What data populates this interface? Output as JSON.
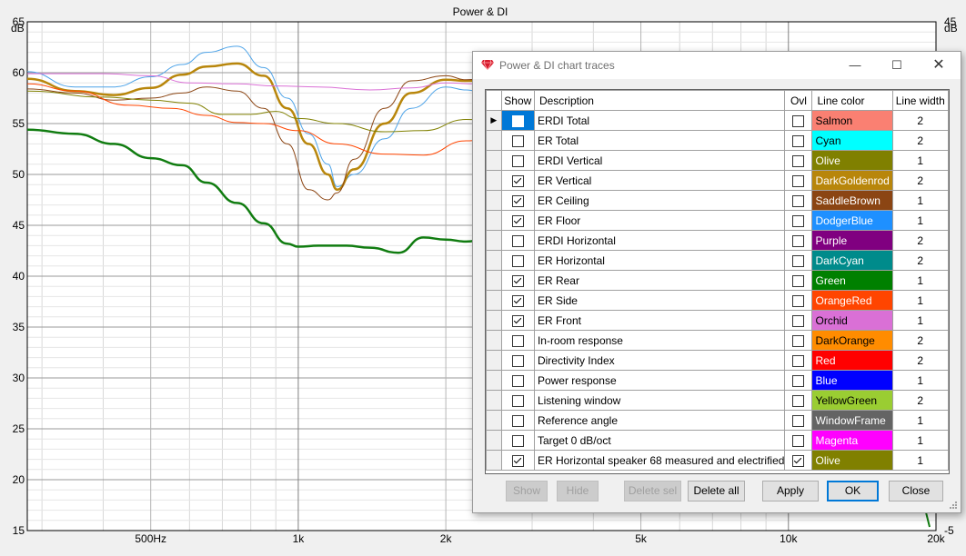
{
  "chart_data": {
    "type": "line",
    "title": "Power & DI",
    "ylabel_left": "dB",
    "ylabel_right": "dB",
    "x_scale": "log",
    "xlim": [
      280,
      20000
    ],
    "ylim": [
      15,
      65
    ],
    "ylim_right": [
      -5,
      45
    ],
    "x_ticks": [
      {
        "value": 500,
        "label": "500Hz"
      },
      {
        "value": 1000,
        "label": "1k"
      },
      {
        "value": 2000,
        "label": "2k"
      },
      {
        "value": 5000,
        "label": "5k"
      },
      {
        "value": 10000,
        "label": "10k"
      },
      {
        "value": 20000,
        "label": "20k"
      }
    ],
    "y_ticks_left": [
      "65",
      "60",
      "55",
      "50",
      "45",
      "40",
      "35",
      "30",
      "25",
      "20",
      "15"
    ],
    "y_ticks_right": [
      "45",
      "-5"
    ],
    "grid": true,
    "series": [
      {
        "color": "#4da3e8",
        "width": 1,
        "x": [
          280,
          350,
          420,
          500,
          580,
          650,
          750,
          850,
          950,
          1050,
          1150,
          1200,
          1300,
          1500,
          1700,
          2000,
          2200,
          2500,
          2700
        ],
        "y": [
          60.1,
          58.6,
          58.6,
          59.6,
          60.8,
          62.0,
          62.6,
          60.5,
          57.5,
          54.0,
          51.0,
          48.8,
          50.0,
          53.5,
          56.5,
          58.6,
          58.3,
          57.5,
          57.3
        ]
      },
      {
        "color": "#b8860b",
        "width": 2.5,
        "x": [
          280,
          350,
          420,
          500,
          580,
          650,
          750,
          850,
          950,
          1050,
          1150,
          1200,
          1300,
          1500,
          1700,
          2000,
          2200,
          2500,
          2700
        ],
        "y": [
          59.4,
          58.2,
          57.8,
          58.5,
          59.8,
          60.6,
          60.9,
          59.7,
          56.5,
          53.0,
          50.0,
          48.5,
          50.5,
          55.0,
          58.0,
          59.3,
          59.2,
          59.3,
          58.8
        ]
      },
      {
        "color": "#8b4513",
        "width": 1,
        "x": [
          280,
          350,
          420,
          500,
          580,
          650,
          750,
          850,
          950,
          1050,
          1150,
          1200,
          1300,
          1500,
          1700,
          2000,
          2200,
          2500,
          2700
        ],
        "y": [
          58.4,
          58.0,
          57.3,
          57.5,
          58.0,
          58.6,
          58.2,
          56.5,
          53.0,
          48.5,
          47.5,
          48.2,
          51.5,
          56.5,
          59.2,
          59.7,
          59.3,
          59.6,
          59.2
        ]
      },
      {
        "color": "#da70d6",
        "width": 1,
        "x": [
          280,
          400,
          500,
          600,
          750,
          900,
          1100,
          1400,
          1700,
          2000,
          2300,
          2700
        ],
        "y": [
          59.9,
          59.9,
          59.7,
          59.0,
          58.9,
          58.7,
          58.6,
          58.3,
          58.5,
          59.0,
          58.9,
          58.8
        ]
      },
      {
        "color": "#808000",
        "width": 1,
        "x": [
          280,
          400,
          500,
          600,
          700,
          800,
          900,
          1000,
          1200,
          1500,
          1800,
          2200,
          2700
        ],
        "y": [
          58.2,
          57.6,
          57.3,
          57.0,
          55.9,
          55.9,
          56.2,
          55.5,
          55.0,
          54.2,
          54.3,
          55.4,
          55.2
        ]
      },
      {
        "color": "#ff4500",
        "width": 1,
        "x": [
          280,
          350,
          450,
          550,
          650,
          750,
          850,
          1000,
          1200,
          1500,
          1800,
          2200,
          2700
        ],
        "y": [
          58.9,
          58.2,
          56.8,
          56.5,
          55.8,
          55.1,
          55.0,
          54.3,
          53.0,
          52.0,
          51.9,
          53.3,
          53.8
        ]
      },
      {
        "color": "#107c10",
        "width": 2.5,
        "x": [
          280,
          350,
          420,
          500,
          580,
          650,
          750,
          850,
          950,
          1000,
          1100,
          1250,
          1400,
          1600,
          1800,
          2000,
          2200,
          2400,
          2600,
          2700
        ],
        "y": [
          54.4,
          54.0,
          53.0,
          51.6,
          50.9,
          49.2,
          47.2,
          45.2,
          43.2,
          42.9,
          43.0,
          43.0,
          42.8,
          42.3,
          43.8,
          43.6,
          43.4,
          43.6,
          43.8,
          43.4
        ]
      }
    ]
  },
  "dialog": {
    "title": "Power & DI chart traces",
    "columns": [
      "Show",
      "Description",
      "Ovl",
      "Line color",
      "Line width"
    ],
    "rows": [
      {
        "show": false,
        "desc": "ERDI Total",
        "ovl": false,
        "color": "Salmon",
        "hex": "#fa8072",
        "text": "#000000",
        "width": "2",
        "selected": true
      },
      {
        "show": false,
        "desc": "ER Total",
        "ovl": false,
        "color": "Cyan",
        "hex": "#00ffff",
        "text": "#000000",
        "width": "2"
      },
      {
        "show": false,
        "desc": "ERDI Vertical",
        "ovl": false,
        "color": "Olive",
        "hex": "#808000",
        "text": "#ffffff",
        "width": "1"
      },
      {
        "show": true,
        "desc": "ER Vertical",
        "ovl": false,
        "color": "DarkGoldenrod",
        "hex": "#b8860b",
        "text": "#ffffff",
        "width": "2"
      },
      {
        "show": true,
        "desc": "ER Ceiling",
        "ovl": false,
        "color": "SaddleBrown",
        "hex": "#8b4513",
        "text": "#ffffff",
        "width": "1"
      },
      {
        "show": true,
        "desc": "ER Floor",
        "ovl": false,
        "color": "DodgerBlue",
        "hex": "#1e90ff",
        "text": "#ffffff",
        "width": "1"
      },
      {
        "show": false,
        "desc": "ERDI Horizontal",
        "ovl": false,
        "color": "Purple",
        "hex": "#800080",
        "text": "#ffffff",
        "width": "2"
      },
      {
        "show": false,
        "desc": "ER Horizontal",
        "ovl": false,
        "color": "DarkCyan",
        "hex": "#008b8b",
        "text": "#ffffff",
        "width": "2"
      },
      {
        "show": true,
        "desc": "ER Rear",
        "ovl": false,
        "color": "Green",
        "hex": "#008000",
        "text": "#ffffff",
        "width": "1"
      },
      {
        "show": true,
        "desc": "ER Side",
        "ovl": false,
        "color": "OrangeRed",
        "hex": "#ff4500",
        "text": "#ffffff",
        "width": "1"
      },
      {
        "show": true,
        "desc": "ER Front",
        "ovl": false,
        "color": "Orchid",
        "hex": "#da70d6",
        "text": "#000000",
        "width": "1"
      },
      {
        "show": false,
        "desc": "In-room response",
        "ovl": false,
        "color": "DarkOrange",
        "hex": "#ff8c00",
        "text": "#000000",
        "width": "2"
      },
      {
        "show": false,
        "desc": "Directivity Index",
        "ovl": false,
        "color": "Red",
        "hex": "#ff0000",
        "text": "#ffffff",
        "width": "2"
      },
      {
        "show": false,
        "desc": "Power response",
        "ovl": false,
        "color": "Blue",
        "hex": "#0000ff",
        "text": "#ffffff",
        "width": "1"
      },
      {
        "show": false,
        "desc": "Listening window",
        "ovl": false,
        "color": "YellowGreen",
        "hex": "#9acd32",
        "text": "#000000",
        "width": "2"
      },
      {
        "show": false,
        "desc": "Reference angle",
        "ovl": false,
        "color": "WindowFrame",
        "hex": "#646464",
        "text": "#ffffff",
        "width": "1"
      },
      {
        "show": false,
        "desc": "Target 0 dB/oct",
        "ovl": false,
        "color": "Magenta",
        "hex": "#ff00ff",
        "text": "#ffffff",
        "width": "1"
      },
      {
        "show": true,
        "desc": "ER Horizontal speaker 68 measured and electrified",
        "ovl": true,
        "color": "Olive",
        "hex": "#808000",
        "text": "#ffffff",
        "width": "1"
      }
    ],
    "buttons": {
      "show": "Show",
      "hide": "Hide",
      "delete_sel": "Delete sel",
      "delete_all": "Delete all",
      "apply": "Apply",
      "ok": "OK",
      "close": "Close"
    },
    "icons": {
      "app": "ruby-icon",
      "minimize": "minimize-icon",
      "maximize": "maximize-icon",
      "close": "close-icon"
    }
  }
}
